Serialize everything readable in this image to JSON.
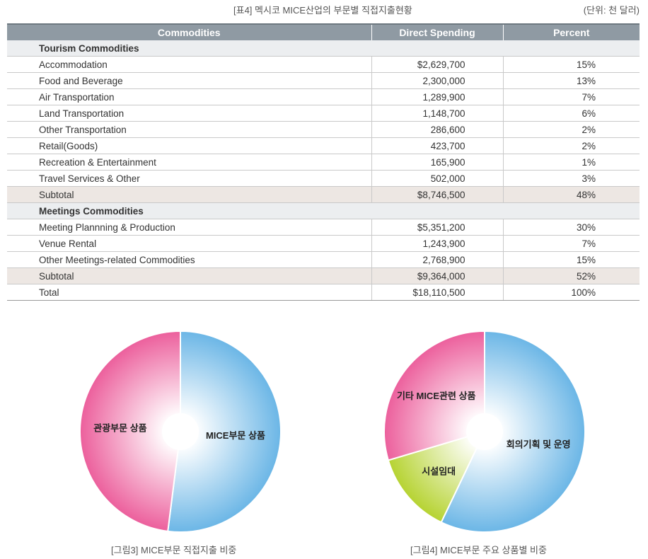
{
  "header": {
    "title": "[표4] 멕시코 MICE산업의 부문별 직접지출현황",
    "unit": "(단위: 천 달러)"
  },
  "table": {
    "columns": [
      "Commodities",
      "Direct Spending",
      "Percent"
    ],
    "sections": [
      {
        "title": "Tourism Commodities",
        "rows": [
          {
            "name": "Accommodation",
            "spending": "$2,629,700",
            "percent": "15%"
          },
          {
            "name": "Food and Beverage",
            "spending": "2,300,000",
            "percent": "13%"
          },
          {
            "name": "Air Transportation",
            "spending": "1,289,900",
            "percent": "7%"
          },
          {
            "name": "Land Transportation",
            "spending": "1,148,700",
            "percent": "6%"
          },
          {
            "name": "Other Transportation",
            "spending": "286,600",
            "percent": "2%"
          },
          {
            "name": "Retail(Goods)",
            "spending": "423,700",
            "percent": "2%"
          },
          {
            "name": "Recreation & Entertainment",
            "spending": "165,900",
            "percent": "1%"
          },
          {
            "name": "Travel Services & Other",
            "spending": "502,000",
            "percent": "3%"
          }
        ],
        "subtotal": {
          "name": "Subtotal",
          "spending": "$8,746,500",
          "percent": "48%"
        }
      },
      {
        "title": "Meetings Commodities",
        "rows": [
          {
            "name": "Meeting Plannning & Production",
            "spending": "$5,351,200",
            "percent": "30%"
          },
          {
            "name": "Venue Rental",
            "spending": "1,243,900",
            "percent": "7%"
          },
          {
            "name": "Other Meetings-related Commodities",
            "spending": "2,768,900",
            "percent": "15%"
          }
        ],
        "subtotal": {
          "name": "Subtotal",
          "spending": "$9,364,000",
          "percent": "52%"
        }
      }
    ],
    "total": {
      "name": "Total",
      "spending": "$18,110,500",
      "percent": "100%"
    }
  },
  "chart_data": [
    {
      "type": "pie",
      "caption": "[그림3] MICE부문 직접지출 비중",
      "slices": [
        {
          "label": "MICE부문 상품",
          "value": 52,
          "color": "#6bb6e6"
        },
        {
          "label": "관광부문 상품",
          "value": 48,
          "color": "#ec5f9c"
        }
      ]
    },
    {
      "type": "pie",
      "caption": "[그림4] MICE부문 주요 상품별 비중",
      "slices": [
        {
          "label": "회의기획 및 운영",
          "value": 57.1,
          "color": "#6bb6e6"
        },
        {
          "label": "시설임대",
          "value": 13.3,
          "color": "#b6d332"
        },
        {
          "label": "기타 MICE관련 상품",
          "value": 29.6,
          "color": "#ec5f9c"
        }
      ]
    }
  ]
}
